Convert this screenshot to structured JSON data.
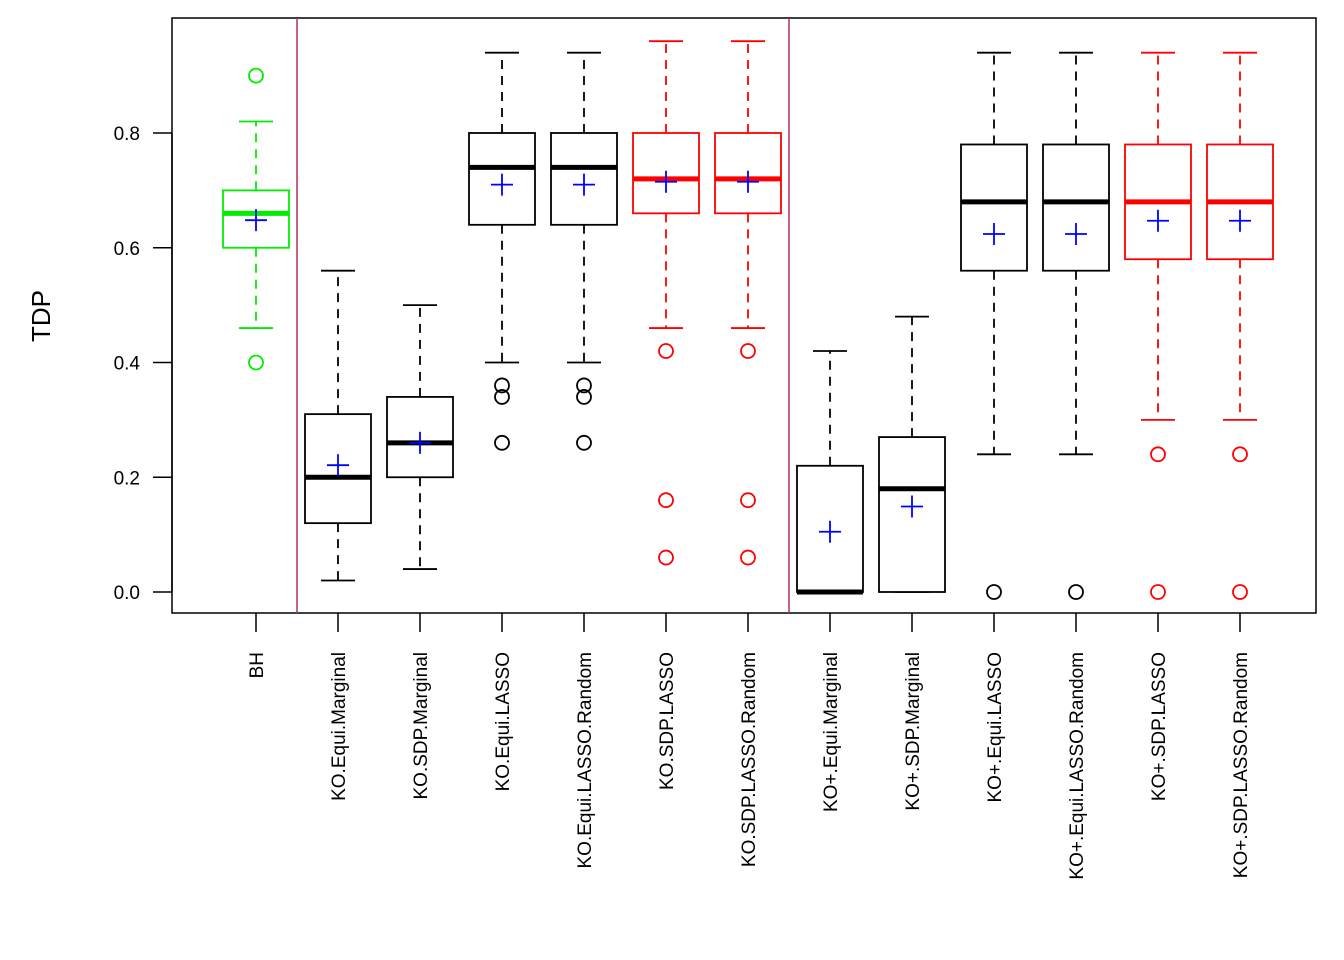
{
  "chart_data": {
    "type": "boxplot",
    "title": "",
    "xlabel": "",
    "ylabel": "TDP",
    "ylim": [
      -0.04,
      0.99
    ],
    "yticks": [
      0.0,
      0.2,
      0.4,
      0.6,
      0.8
    ],
    "ytick_labels": [
      "0.0",
      "0.2",
      "0.4",
      "0.6",
      "0.8"
    ],
    "grid": false,
    "legend": "none",
    "group_separators_after": [
      1,
      7
    ],
    "colors": {
      "black": "#000000",
      "red": "#ff0000",
      "green": "#00ee00",
      "mean_marker": "#0000ff",
      "separator": "#b03060"
    },
    "categories": [
      "BH",
      "KO.Equi.Marginal",
      "KO.SDP.Marginal",
      "KO.Equi.LASSO",
      "KO.Equi.LASSO.Random",
      "KO.SDP.LASSO",
      "KO.SDP.LASSO.Random",
      "KO+.Equi.Marginal",
      "KO+.SDP.Marginal",
      "KO+.Equi.LASSO",
      "KO+.Equi.LASSO.Random",
      "KO+.SDP.LASSO",
      "KO+.SDP.LASSO.Random"
    ],
    "boxes": [
      {
        "name": "BH",
        "color": "green",
        "whisker_low": 0.46,
        "q1": 0.6,
        "median": 0.66,
        "q3": 0.7,
        "whisker_high": 0.82,
        "mean": 0.648,
        "outliers": [
          0.4,
          0.9
        ]
      },
      {
        "name": "KO.Equi.Marginal",
        "color": "black",
        "whisker_low": 0.02,
        "q1": 0.12,
        "median": 0.2,
        "q3": 0.31,
        "whisker_high": 0.56,
        "mean": 0.221,
        "outliers": []
      },
      {
        "name": "KO.SDP.Marginal",
        "color": "black",
        "whisker_low": 0.04,
        "q1": 0.2,
        "median": 0.26,
        "q3": 0.34,
        "whisker_high": 0.5,
        "mean": 0.26,
        "outliers": []
      },
      {
        "name": "KO.Equi.LASSO",
        "color": "black",
        "whisker_low": 0.4,
        "q1": 0.64,
        "median": 0.74,
        "q3": 0.8,
        "whisker_high": 0.94,
        "mean": 0.71,
        "outliers": [
          0.36,
          0.34,
          0.26
        ]
      },
      {
        "name": "KO.Equi.LASSO.Random",
        "color": "black",
        "whisker_low": 0.4,
        "q1": 0.64,
        "median": 0.74,
        "q3": 0.8,
        "whisker_high": 0.94,
        "mean": 0.71,
        "outliers": [
          0.36,
          0.34,
          0.26
        ]
      },
      {
        "name": "KO.SDP.LASSO",
        "color": "red",
        "whisker_low": 0.46,
        "q1": 0.66,
        "median": 0.72,
        "q3": 0.8,
        "whisker_high": 0.96,
        "mean": 0.715,
        "outliers": [
          0.42,
          0.16,
          0.06
        ]
      },
      {
        "name": "KO.SDP.LASSO.Random",
        "color": "red",
        "whisker_low": 0.46,
        "q1": 0.66,
        "median": 0.72,
        "q3": 0.8,
        "whisker_high": 0.96,
        "mean": 0.715,
        "outliers": [
          0.42,
          0.16,
          0.06
        ]
      },
      {
        "name": "KO+.Equi.Marginal",
        "color": "black",
        "whisker_low": 0.0,
        "q1": 0.0,
        "median": 0.0,
        "q3": 0.22,
        "whisker_high": 0.42,
        "mean": 0.105,
        "outliers": []
      },
      {
        "name": "KO+.SDP.Marginal",
        "color": "black",
        "whisker_low": 0.0,
        "q1": 0.0,
        "median": 0.18,
        "q3": 0.27,
        "whisker_high": 0.48,
        "mean": 0.149,
        "outliers": []
      },
      {
        "name": "KO+.Equi.LASSO",
        "color": "black",
        "whisker_low": 0.24,
        "q1": 0.56,
        "median": 0.68,
        "q3": 0.78,
        "whisker_high": 0.94,
        "mean": 0.624,
        "outliers": [
          0.0
        ]
      },
      {
        "name": "KO+.Equi.LASSO.Random",
        "color": "black",
        "whisker_low": 0.24,
        "q1": 0.56,
        "median": 0.68,
        "q3": 0.78,
        "whisker_high": 0.94,
        "mean": 0.624,
        "outliers": [
          0.0
        ]
      },
      {
        "name": "KO+.SDP.LASSO",
        "color": "red",
        "whisker_low": 0.3,
        "q1": 0.58,
        "median": 0.68,
        "q3": 0.78,
        "whisker_high": 0.94,
        "mean": 0.647,
        "outliers": [
          0.24,
          0.0
        ]
      },
      {
        "name": "KO+.SDP.LASSO.Random",
        "color": "red",
        "whisker_low": 0.3,
        "q1": 0.58,
        "median": 0.68,
        "q3": 0.78,
        "whisker_high": 0.94,
        "mean": 0.647,
        "outliers": [
          0.24,
          0.0
        ]
      }
    ]
  }
}
